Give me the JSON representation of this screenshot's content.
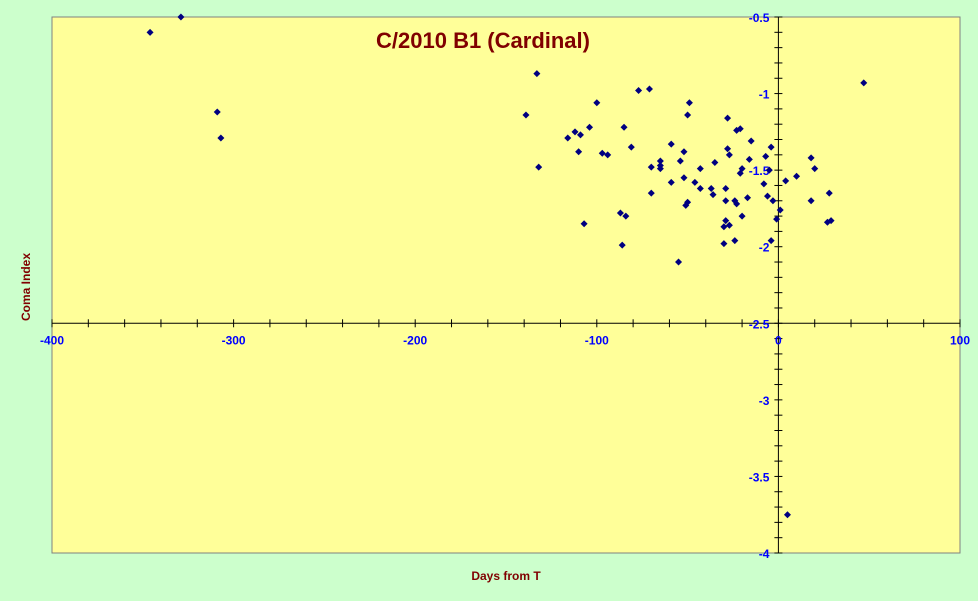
{
  "chart_data": {
    "type": "scatter",
    "title": "C/2010 B1 (Cardinal)",
    "xlabel": "Days from T",
    "ylabel": "Coma Index",
    "xlim": [
      -400,
      100
    ],
    "ylim": [
      -4,
      -0.5
    ],
    "x_axis_crosses_y_at": -2.5,
    "y_axis_crosses_x_at": 0,
    "x_ticks": [
      -400,
      -300,
      -200,
      -100,
      0,
      100
    ],
    "x_tick_labels": [
      "-400",
      "-300",
      "-200",
      "-100",
      "0",
      "100"
    ],
    "y_ticks": [
      -0.5,
      -1,
      -1.5,
      -2,
      -2.5,
      -3,
      -3.5,
      -4
    ],
    "y_tick_labels": [
      "-0.5",
      "-1",
      "-1.5",
      "-2",
      "-2.5",
      "-3",
      "-3.5",
      "-4"
    ],
    "grid": false,
    "legend": "none",
    "colors": {
      "plot_background": "#ffff99",
      "chart_background": "#ccffcc",
      "marker": "#000080",
      "title": "#800000",
      "axis_title": "#800000",
      "tick_label": "#0000ff",
      "axis_line": "#000000"
    },
    "series": [
      {
        "marker": "diamond",
        "points": [
          [
            -346,
            -0.6
          ],
          [
            -329,
            -0.5
          ],
          [
            -309,
            -1.12
          ],
          [
            -307,
            -1.29
          ],
          [
            -139,
            -1.14
          ],
          [
            -133,
            -0.87
          ],
          [
            -132,
            -1.48
          ],
          [
            -116,
            -1.29
          ],
          [
            -112,
            -1.25
          ],
          [
            -110,
            -1.38
          ],
          [
            -109,
            -1.27
          ],
          [
            -107,
            -1.85
          ],
          [
            -104,
            -1.22
          ],
          [
            -100,
            -1.06
          ],
          [
            -97,
            -1.39
          ],
          [
            -94,
            -1.4
          ],
          [
            -87,
            -1.78
          ],
          [
            -86,
            -1.99
          ],
          [
            -85,
            -1.22
          ],
          [
            -84,
            -1.8
          ],
          [
            -81,
            -1.35
          ],
          [
            -77,
            -0.98
          ],
          [
            -71,
            -0.97
          ],
          [
            -70,
            -1.48
          ],
          [
            -70,
            -1.65
          ],
          [
            -65,
            -1.44
          ],
          [
            -65,
            -1.47
          ],
          [
            -65,
            -1.49
          ],
          [
            -59,
            -1.33
          ],
          [
            -59,
            -1.58
          ],
          [
            -55,
            -2.1
          ],
          [
            -54,
            -1.44
          ],
          [
            -52,
            -1.38
          ],
          [
            -52,
            -1.55
          ],
          [
            -51,
            -1.73
          ],
          [
            -50,
            -1.71
          ],
          [
            -50,
            -1.14
          ],
          [
            -49,
            -1.06
          ],
          [
            -46,
            -1.58
          ],
          [
            -43,
            -1.62
          ],
          [
            -43,
            -1.49
          ],
          [
            -37,
            -1.62
          ],
          [
            -36,
            -1.66
          ],
          [
            -35,
            -1.45
          ],
          [
            -30,
            -1.87
          ],
          [
            -30,
            -1.98
          ],
          [
            -29,
            -1.7
          ],
          [
            -29,
            -1.62
          ],
          [
            -29,
            -1.83
          ],
          [
            -28,
            -1.16
          ],
          [
            -28,
            -1.36
          ],
          [
            -27,
            -1.4
          ],
          [
            -27,
            -1.86
          ],
          [
            -24,
            -1.96
          ],
          [
            -24,
            -1.7
          ],
          [
            -23,
            -1.24
          ],
          [
            -23,
            -1.72
          ],
          [
            -21,
            -1.23
          ],
          [
            -21,
            -1.52
          ],
          [
            -20,
            -1.8
          ],
          [
            -20,
            -1.49
          ],
          [
            -17,
            -1.68
          ],
          [
            -16,
            -1.43
          ],
          [
            -15,
            -1.31
          ],
          [
            -8,
            -1.59
          ],
          [
            -7,
            -1.41
          ],
          [
            -6,
            -1.67
          ],
          [
            -5,
            -1.5
          ],
          [
            -4,
            -1.35
          ],
          [
            -4,
            -1.96
          ],
          [
            -3,
            -1.7
          ],
          [
            -1,
            -1.82
          ],
          [
            1,
            -1.76
          ],
          [
            4,
            -1.57
          ],
          [
            5,
            -3.75
          ],
          [
            10,
            -1.54
          ],
          [
            18,
            -1.42
          ],
          [
            18,
            -1.7
          ],
          [
            20,
            -1.49
          ],
          [
            27,
            -1.84
          ],
          [
            28,
            -1.65
          ],
          [
            29,
            -1.83
          ],
          [
            47,
            -0.93
          ]
        ]
      }
    ]
  }
}
